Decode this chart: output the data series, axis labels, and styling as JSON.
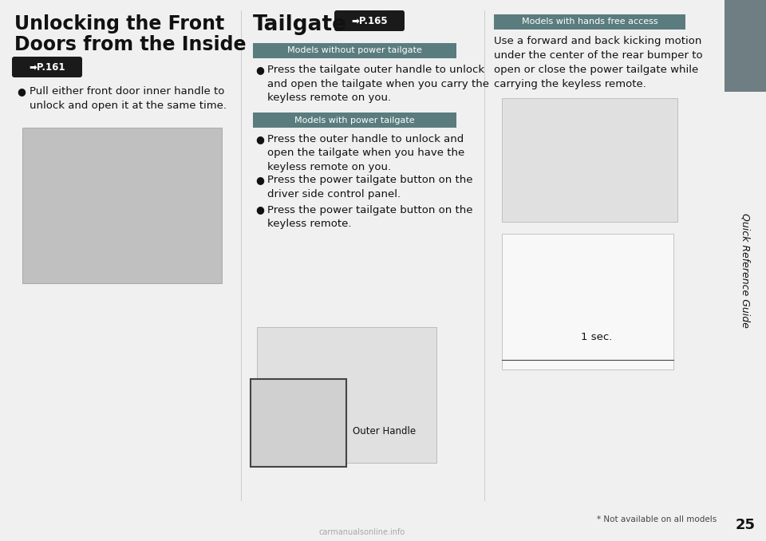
{
  "bg_color": "#f0f0f0",
  "page_bg": "#ffffff",
  "sidebar_dark": "#6e7e82",
  "sidebar_light": "#f0f0f0",
  "sidebar_text": "Quick Reference Guide",
  "page_number": "25",
  "footer_note": "* Not available on all models",
  "watermark": "carmanualsonline.info",
  "col1_title_line1": "Unlocking the Front",
  "col1_title_line2": "Doors from the Inside",
  "col1_ref_text": "➡P.161",
  "col1_bullet": "Pull either front door inner handle to\nunlock and open it at the same time.",
  "col2_title": "Tailgate",
  "col2_ref_text": "➡P.165",
  "col2_label1": "Models without power tailgate",
  "col2_b1": "Press the tailgate outer handle to unlock\nand open the tailgate when you carry the\nkeyless remote on you.",
  "col2_label2": "Models with power tailgate",
  "col2_b2": "Press the outer handle to unlock and\nopen the tailgate when you have the\nkeyless remote on you.",
  "col2_b3": "Press the power tailgate button on the\ndriver side control panel.",
  "col2_b4": "Press the power tailgate button on the\nkeyless remote.",
  "col2_caption": "Outer Handle",
  "col3_label": "Models with hands free access",
  "col3_text": "Use a forward and back kicking motion\nunder the center of the rear bumper to\nopen or close the power tailgate while\ncarrying the keyless remote.",
  "col3_sec_caption": "1 sec.",
  "divider_color": "#cccccc",
  "text_color": "#111111",
  "label_bg": "#5a7c7e",
  "label_fg": "#ffffff",
  "ref_bg": "#1a1a1a",
  "ref_fg": "#ffffff",
  "fs_title": 17,
  "fs_body": 9.5,
  "fs_label": 8,
  "fs_ref": 8.5,
  "fs_sidebar": 9,
  "fs_caption": 8.5,
  "fs_footer": 7.5,
  "fs_page_num": 13
}
